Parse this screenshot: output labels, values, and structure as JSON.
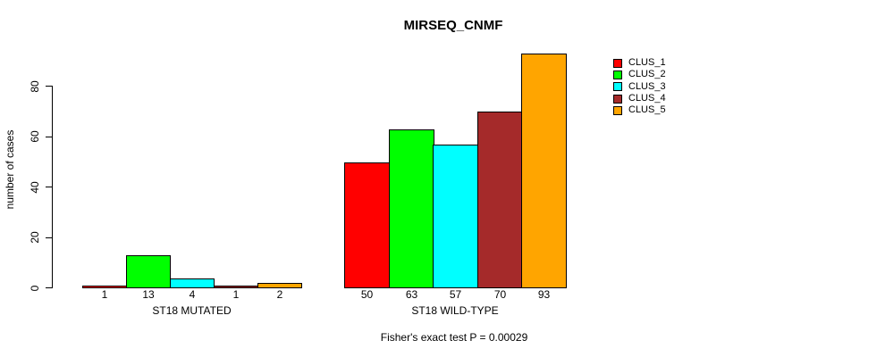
{
  "title": "MIRSEQ_CNMF",
  "ylabel": "number of cases",
  "caption": "Fisher's exact test P = 0.00029",
  "legend": {
    "items": [
      {
        "label": "CLUS_1",
        "color": "#FF0000"
      },
      {
        "label": "CLUS_2",
        "color": "#00FF00"
      },
      {
        "label": "CLUS_3",
        "color": "#00FFFF"
      },
      {
        "label": "CLUS_4",
        "color": "#A52A2A"
      },
      {
        "label": "CLUS_5",
        "color": "#FFA500"
      }
    ]
  },
  "chart_data": {
    "type": "bar",
    "title": "MIRSEQ_CNMF",
    "xlabel": "",
    "ylabel": "number of cases",
    "yticks": [
      0,
      20,
      40,
      60,
      80
    ],
    "ylim": [
      0,
      93
    ],
    "grid": false,
    "legend_position": "top-right",
    "series_labels": [
      "CLUS_1",
      "CLUS_2",
      "CLUS_3",
      "CLUS_4",
      "CLUS_5"
    ],
    "colors": [
      "#FF0000",
      "#00FF00",
      "#00FFFF",
      "#A52A2A",
      "#FFA500"
    ],
    "groups": [
      {
        "label": "ST18 MUTATED",
        "values": [
          1,
          13,
          4,
          1,
          2
        ]
      },
      {
        "label": "ST18 WILD-TYPE",
        "values": [
          50,
          63,
          57,
          70,
          93
        ]
      }
    ],
    "bar_value_labels": [
      [
        "1",
        "13",
        "4",
        "1",
        "2"
      ],
      [
        "50",
        "63",
        "57",
        "70",
        "93"
      ]
    ],
    "annotation": "Fisher's exact test P = 0.00029"
  }
}
